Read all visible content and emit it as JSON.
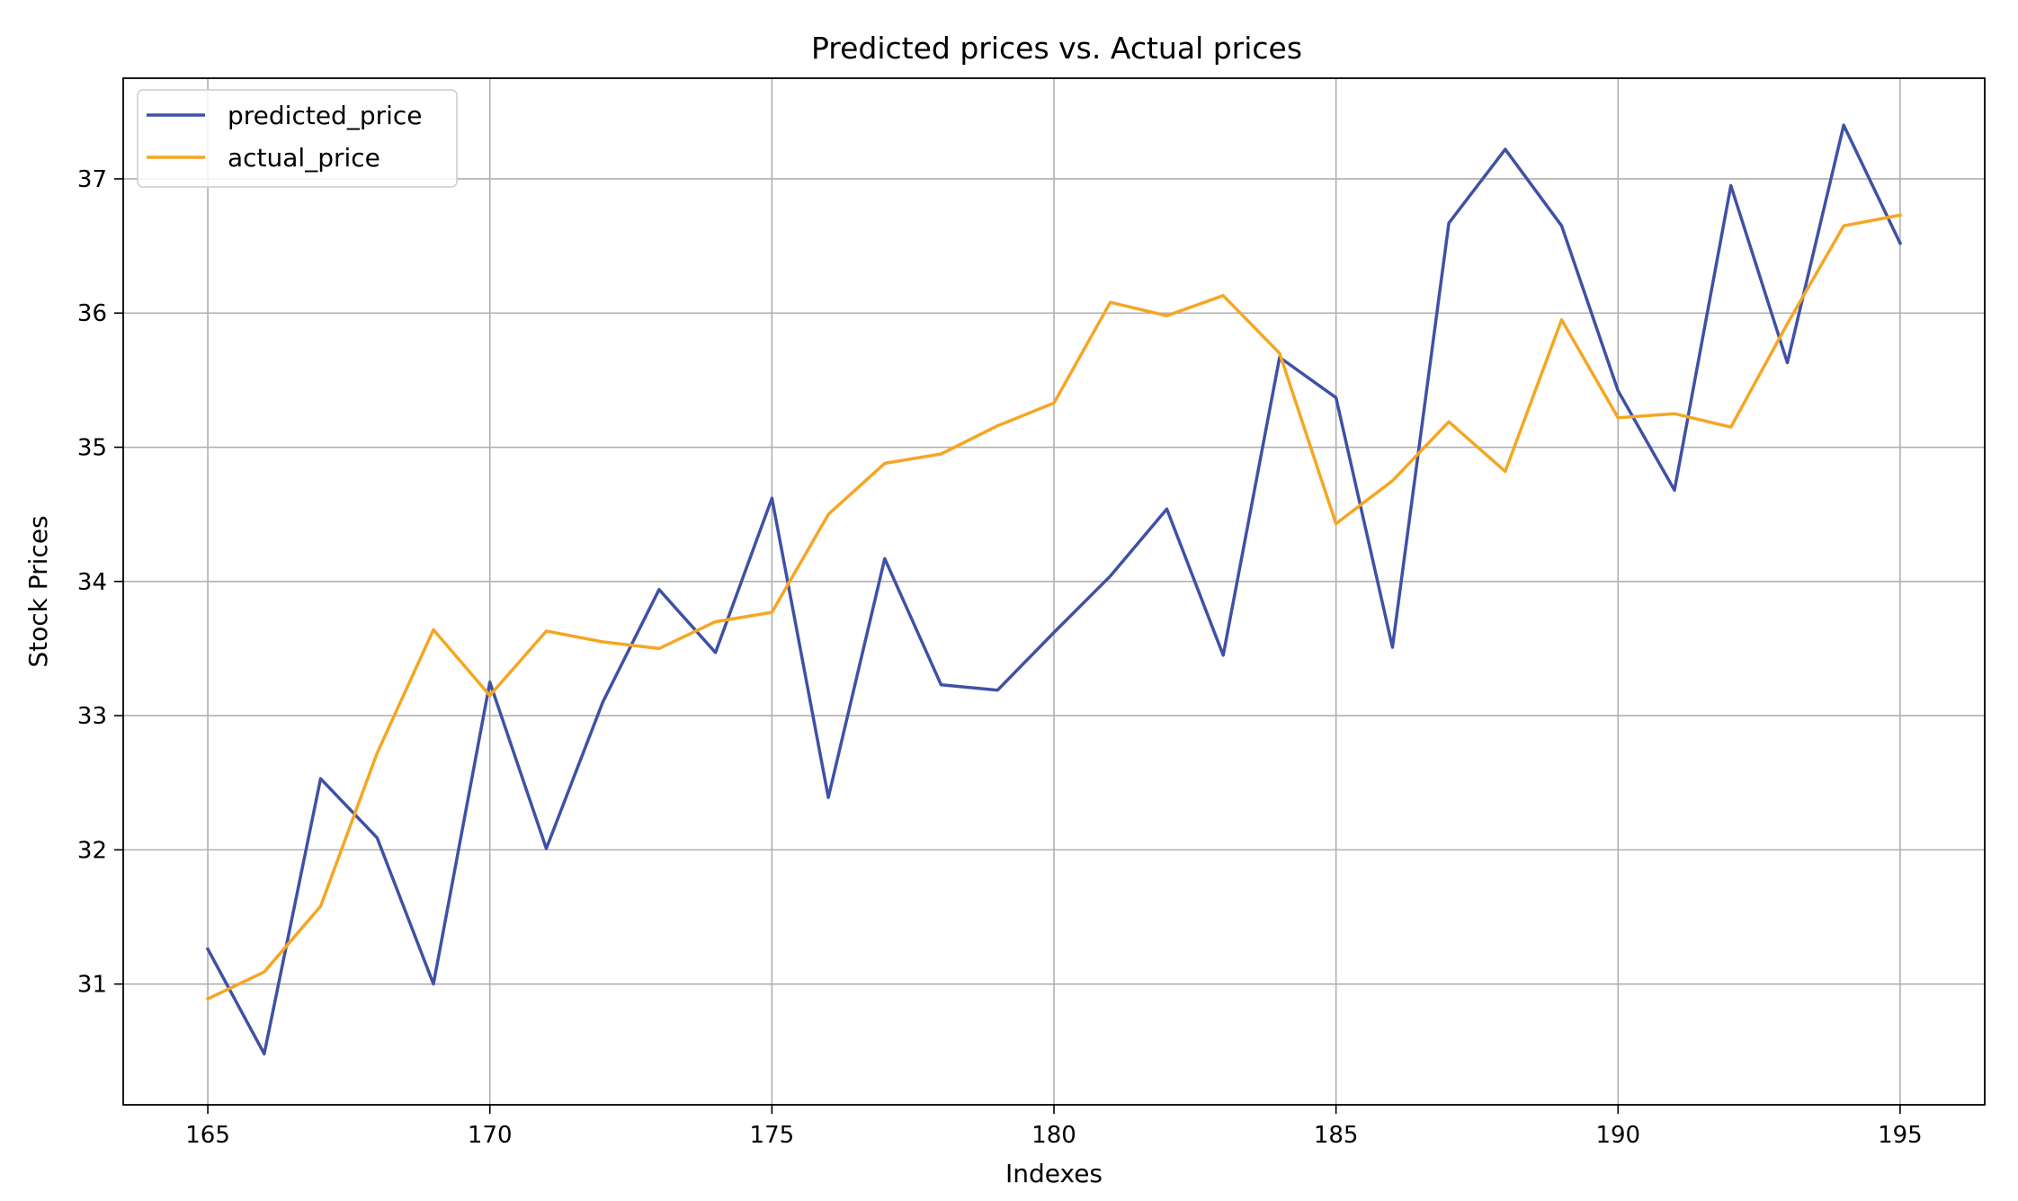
{
  "chart_data": {
    "type": "line",
    "title": "Predicted prices vs. Actual prices",
    "xlabel": "Indexes",
    "ylabel": "Stock Prices",
    "xlim": [
      163.5,
      196.5
    ],
    "ylim": [
      30.1,
      37.75
    ],
    "xticks": [
      165,
      170,
      175,
      180,
      185,
      190,
      195
    ],
    "yticks": [
      31,
      32,
      33,
      34,
      35,
      36,
      37
    ],
    "grid": true,
    "legend_position": "upper-left",
    "x": [
      165,
      166,
      167,
      168,
      169,
      170,
      171,
      172,
      173,
      174,
      175,
      176,
      177,
      178,
      179,
      180,
      181,
      182,
      183,
      184,
      185,
      186,
      187,
      188,
      189,
      190,
      191,
      192,
      193,
      194,
      195
    ],
    "series": [
      {
        "name": "predicted_price",
        "color": "#3f51a5",
        "values": [
          31.26,
          30.48,
          32.53,
          32.09,
          31.0,
          33.25,
          32.01,
          33.1,
          33.94,
          33.47,
          34.62,
          32.39,
          34.17,
          33.23,
          33.19,
          33.62,
          34.04,
          34.54,
          33.45,
          35.67,
          35.37,
          33.51,
          36.67,
          37.22,
          36.65,
          35.42,
          34.68,
          36.95,
          35.63,
          37.4,
          36.52
        ]
      },
      {
        "name": "actual_price",
        "color": "#f5a623",
        "values": [
          30.89,
          31.09,
          31.58,
          32.72,
          33.64,
          33.15,
          33.63,
          33.55,
          33.5,
          33.7,
          33.77,
          34.5,
          34.88,
          34.95,
          35.16,
          35.33,
          36.08,
          35.98,
          36.13,
          35.7,
          34.43,
          34.75,
          35.19,
          34.82,
          35.95,
          35.22,
          35.25,
          35.15,
          35.92,
          36.65,
          36.73
        ]
      }
    ]
  }
}
